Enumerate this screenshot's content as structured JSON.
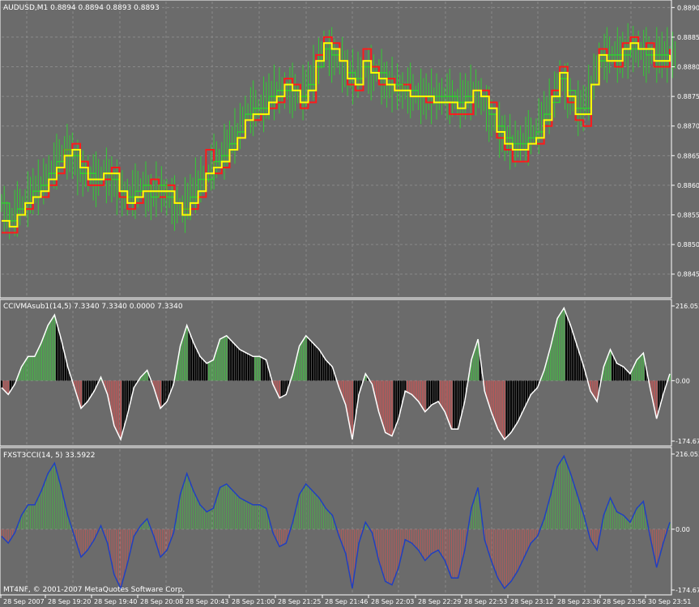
{
  "panels": {
    "main": {
      "title": "AUDUSD,M1  0.8894 0.8894 0.8893 0.8893"
    },
    "cci1": {
      "title": "CCIVMAsub1(14,5) 7.3340 7.3340 0.0000 7.3340"
    },
    "cci2": {
      "title": "FXST3CCI(14, 5) 33.5922"
    }
  },
  "copyright": "MT4NF, © 2001-2007 MetaQuotes Software Corp.",
  "colors": {
    "background": "#6b6b6b",
    "grid": "#8a8a8a",
    "candle": "#33cc33",
    "red_line": "#ff1a1a",
    "yellow_line": "#ffff00",
    "white_line": "#ffffff",
    "blue_line": "#2040c0",
    "green_hist": "#4fa34f",
    "red_hist": "#b05a5a",
    "black_hist": "#000000"
  },
  "chart_data": [
    {
      "type": "line",
      "panel": "main",
      "y_ticks": [
        "0.8890",
        "0.8885",
        "0.8880",
        "0.8875",
        "0.8870",
        "0.8865",
        "0.8860",
        "0.8855",
        "0.8850",
        "0.8845"
      ],
      "ylim": [
        0.8841,
        0.8891
      ],
      "series": [
        {
          "role": "red",
          "values": [
            0.8852,
            0.8852,
            0.8855,
            0.8856,
            0.8858,
            0.8858,
            0.886,
            0.8862,
            0.8866,
            0.8867,
            0.8864,
            0.886,
            0.886,
            0.8861,
            0.8863,
            0.8858,
            0.8856,
            0.8857,
            0.8859,
            0.8861,
            0.8858,
            0.886,
            0.8857,
            0.8856,
            0.8856,
            0.8858,
            0.8866,
            0.8862,
            0.8863,
            0.8866,
            0.8868,
            0.8871,
            0.8871,
            0.8872,
            0.8873,
            0.8874,
            0.8878,
            0.8877,
            0.8873,
            0.8874,
            0.8882,
            0.8885,
            0.8884,
            0.8881,
            0.8877,
            0.8876,
            0.8883,
            0.888,
            0.8877,
            0.8878,
            0.8876,
            0.8877,
            0.8875,
            0.8875,
            0.8874,
            0.8874,
            0.8874,
            0.8872,
            0.8872,
            0.8872,
            0.8876,
            0.8876,
            0.8874,
            0.8868,
            0.8866,
            0.8864,
            0.8864,
            0.8867,
            0.8867,
            0.887,
            0.8876,
            0.888,
            0.8874,
            0.8871,
            0.887,
            0.8877,
            0.8883,
            0.8881,
            0.888,
            0.8884,
            0.8885,
            0.8883,
            0.8884,
            0.888,
            0.888,
            0.8883
          ]
        },
        {
          "role": "yellow",
          "values": [
            0.8854,
            0.8853,
            0.8855,
            0.8857,
            0.8858,
            0.8859,
            0.8861,
            0.8863,
            0.8865,
            0.8866,
            0.8863,
            0.8861,
            0.8861,
            0.8862,
            0.8862,
            0.8859,
            0.8857,
            0.8858,
            0.8859,
            0.8859,
            0.8859,
            0.8859,
            0.8857,
            0.8855,
            0.8857,
            0.8859,
            0.8862,
            0.8863,
            0.8864,
            0.8866,
            0.8868,
            0.8871,
            0.8872,
            0.8872,
            0.8874,
            0.8875,
            0.8877,
            0.8876,
            0.8874,
            0.8876,
            0.8881,
            0.8884,
            0.8883,
            0.8881,
            0.8878,
            0.8877,
            0.8881,
            0.8879,
            0.8878,
            0.8877,
            0.8876,
            0.8876,
            0.8875,
            0.8875,
            0.8875,
            0.8874,
            0.8874,
            0.8874,
            0.8873,
            0.8874,
            0.8876,
            0.8875,
            0.8873,
            0.8869,
            0.8867,
            0.8866,
            0.8866,
            0.8867,
            0.8868,
            0.8871,
            0.8875,
            0.8879,
            0.8875,
            0.8872,
            0.8872,
            0.8877,
            0.8882,
            0.8881,
            0.8881,
            0.8883,
            0.8884,
            0.8883,
            0.8883,
            0.8881,
            0.8881,
            0.8882
          ]
        },
        {
          "role": "green",
          "values": [
            0.8857,
            0.8854,
            0.8856,
            0.8857,
            0.8859,
            0.886,
            0.8862,
            0.8864,
            0.8866,
            0.8865,
            0.8862,
            0.8862,
            0.8861,
            0.8862,
            0.8861,
            0.8859,
            0.8858,
            0.8859,
            0.886,
            0.8858,
            0.886,
            0.8858,
            0.8857,
            0.8856,
            0.8858,
            0.8861,
            0.8861,
            0.8864,
            0.8865,
            0.8867,
            0.8869,
            0.8872,
            0.8873,
            0.8873,
            0.8875,
            0.8876,
            0.8876,
            0.8876,
            0.8875,
            0.8877,
            0.888,
            0.8883,
            0.8882,
            0.8881,
            0.8879,
            0.8878,
            0.888,
            0.8879,
            0.8879,
            0.8877,
            0.8877,
            0.8876,
            0.8876,
            0.8875,
            0.8875,
            0.8875,
            0.8875,
            0.8875,
            0.8874,
            0.8875,
            0.8876,
            0.8875,
            0.8872,
            0.887,
            0.8868,
            0.8867,
            0.8867,
            0.8868,
            0.8869,
            0.8872,
            0.8874,
            0.8878,
            0.8876,
            0.8873,
            0.8873,
            0.8877,
            0.8881,
            0.8882,
            0.8882,
            0.8882,
            0.8883,
            0.8883,
            0.8882,
            0.8882,
            0.8882,
            0.8882
          ]
        }
      ]
    },
    {
      "type": "bar",
      "panel": "cci1",
      "y_ticks": [
        "216.0539",
        "0.00",
        "-174.673"
      ],
      "ylim": [
        -174.673,
        216.0539
      ],
      "values": [
        -20,
        -40,
        -10,
        40,
        70,
        70,
        110,
        160,
        190,
        120,
        40,
        -20,
        -80,
        -60,
        -30,
        10,
        -40,
        -130,
        -170,
        -100,
        -20,
        10,
        30,
        -20,
        -80,
        -60,
        -10,
        100,
        160,
        110,
        70,
        50,
        60,
        120,
        130,
        110,
        90,
        80,
        70,
        70,
        60,
        -10,
        -50,
        -40,
        20,
        100,
        130,
        110,
        90,
        60,
        40,
        -20,
        -70,
        -170,
        -40,
        20,
        -10,
        -90,
        -150,
        -160,
        -110,
        -30,
        -40,
        -60,
        -90,
        -70,
        -60,
        -90,
        -140,
        -140,
        -60,
        60,
        120,
        -30,
        -90,
        -140,
        -170,
        -150,
        -120,
        -80,
        -40,
        -20,
        30,
        100,
        180,
        210,
        160,
        100,
        40,
        -30,
        -60,
        40,
        90,
        50,
        40,
        20,
        60,
        80,
        -20,
        -110,
        -40,
        20
      ]
    },
    {
      "type": "bar",
      "panel": "cci2",
      "y_ticks": [
        "216.0539",
        "0.00",
        "-174.673"
      ],
      "ylim": [
        -174.673,
        216.0539
      ],
      "values": [
        -20,
        -40,
        -10,
        40,
        70,
        70,
        110,
        160,
        190,
        120,
        40,
        -20,
        -80,
        -60,
        -30,
        10,
        -40,
        -130,
        -170,
        -100,
        -20,
        10,
        30,
        -20,
        -80,
        -60,
        -10,
        100,
        160,
        110,
        70,
        50,
        60,
        120,
        130,
        110,
        90,
        80,
        70,
        70,
        60,
        -10,
        -50,
        -40,
        20,
        100,
        130,
        110,
        90,
        60,
        40,
        -20,
        -70,
        -170,
        -40,
        20,
        -10,
        -90,
        -150,
        -160,
        -110,
        -30,
        -40,
        -60,
        -90,
        -70,
        -60,
        -90,
        -140,
        -140,
        -60,
        60,
        120,
        -30,
        -90,
        -140,
        -170,
        -150,
        -120,
        -80,
        -40,
        -20,
        30,
        100,
        180,
        210,
        160,
        100,
        40,
        -30,
        -60,
        40,
        90,
        50,
        40,
        20,
        60,
        80,
        -20,
        -110,
        -40,
        20
      ]
    }
  ],
  "time_axis": [
    "28 Sep 2007",
    "28 Sep 19:20",
    "28 Sep 19:40",
    "28 Sep 20:08",
    "28 Sep 20:43",
    "28 Sep 21:00",
    "28 Sep 21:25",
    "28 Sep 21:46",
    "28 Sep 22:03",
    "28 Sep 22:29",
    "28 Sep 22:53",
    "28 Sep 23:12",
    "28 Sep 23:36",
    "28 Sep 23:56",
    "30 Sep 23:51"
  ]
}
